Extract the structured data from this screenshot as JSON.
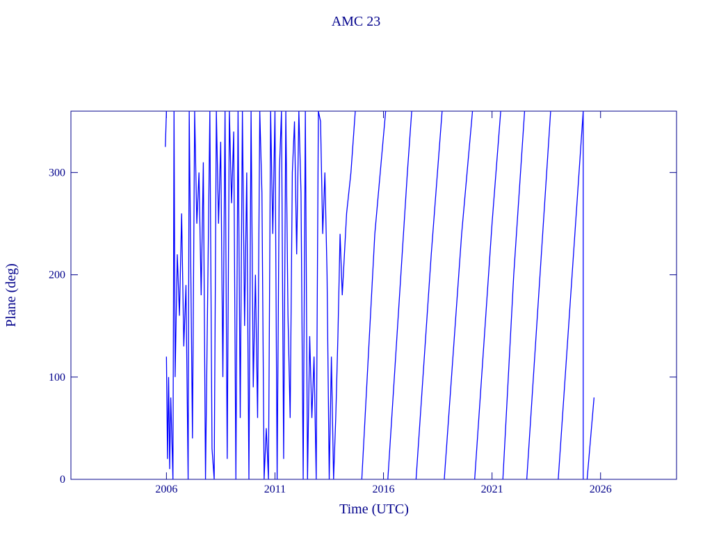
{
  "chart_data": {
    "type": "line",
    "title": "AMC 23",
    "x_label": "Time (UTC)",
    "y_label": "Plane (deg)",
    "color": "#0000ff",
    "axis_color": "#00008b",
    "xlim": [
      2001.6,
      2029.5
    ],
    "xticks": [
      2006,
      2011,
      2016,
      2021,
      2026
    ],
    "ylim": [
      0,
      360
    ],
    "yticks": [
      0,
      100,
      200,
      300
    ],
    "x": [
      2005.95,
      2006.0,
      null,
      2006.0,
      2006.05,
      2006.1,
      2006.15,
      2006.2,
      2006.3,
      2006.35,
      2006.4,
      2006.5,
      2006.6,
      2006.7,
      2006.8,
      2006.9,
      2007.0,
      2007.05,
      2007.2,
      2007.3,
      2007.4,
      2007.5,
      2007.6,
      2007.7,
      2007.8,
      2008.0,
      2008.1,
      2008.2,
      2008.3,
      2008.4,
      2008.5,
      2008.6,
      2008.7,
      2008.8,
      2008.9,
      2009.0,
      2009.1,
      2009.2,
      2009.3,
      2009.4,
      2009.5,
      2009.6,
      2009.7,
      2009.8,
      2009.9,
      2010.0,
      2010.1,
      2010.2,
      2010.3,
      2010.4,
      2010.5,
      2010.6,
      2010.7,
      2010.8,
      2010.9,
      2011.0,
      2011.1,
      2011.2,
      2011.3,
      2011.4,
      2011.5,
      2011.6,
      2011.7,
      2011.8,
      2011.9,
      2012.0,
      2012.1,
      2012.2,
      2012.3,
      2012.4,
      2012.5,
      2012.6,
      2012.7,
      2012.8,
      2012.9,
      2013.0,
      2013.1,
      2013.2,
      2013.3,
      2013.4,
      2013.5,
      2013.6,
      2013.7,
      2013.8,
      2013.9,
      2014.0,
      2014.1,
      2014.3,
      2014.5,
      2014.7,
      null,
      2015.0,
      2015.6,
      2016.1,
      null,
      2016.2,
      2017.1,
      2017.3,
      null,
      2017.5,
      2018.2,
      2018.7,
      null,
      2018.8,
      2019.6,
      2020.1,
      null,
      2020.2,
      2021.0,
      2021.4,
      null,
      2021.5,
      2022.0,
      2022.5,
      null,
      2022.6,
      2023.7,
      null,
      2024.05,
      2025.2,
      2025.2,
      null,
      2025.38,
      2025.7
    ],
    "values": [
      325,
      360,
      null,
      120,
      20,
      100,
      10,
      80,
      0,
      360,
      100,
      220,
      160,
      260,
      130,
      190,
      0,
      360,
      40,
      360,
      250,
      300,
      180,
      310,
      0,
      360,
      30,
      0,
      360,
      250,
      330,
      100,
      360,
      20,
      360,
      270,
      340,
      0,
      360,
      60,
      360,
      150,
      300,
      0,
      360,
      90,
      200,
      60,
      360,
      280,
      0,
      50,
      0,
      360,
      240,
      360,
      0,
      300,
      360,
      20,
      360,
      160,
      60,
      300,
      350,
      220,
      360,
      280,
      0,
      360,
      0,
      140,
      60,
      120,
      0,
      360,
      350,
      240,
      300,
      200,
      0,
      120,
      0,
      60,
      140,
      240,
      180,
      260,
      300,
      360,
      null,
      0,
      240,
      360,
      null,
      0,
      300,
      360,
      null,
      0,
      220,
      360,
      null,
      0,
      240,
      360,
      null,
      0,
      250,
      360,
      null,
      0,
      200,
      360,
      null,
      0,
      360,
      null,
      0,
      360,
      0,
      null,
      0,
      80
    ]
  }
}
